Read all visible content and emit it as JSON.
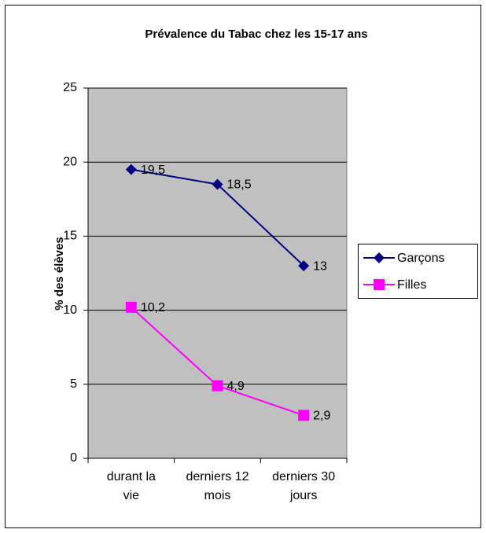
{
  "chart_data": {
    "type": "line",
    "title": "Prévalence du Tabac chez les 15-17 ans",
    "ylabel": "% des élèves",
    "categories": [
      "durant la vie",
      "derniers 12 mois",
      "derniers 30 jours"
    ],
    "series": [
      {
        "name": "Garçons",
        "color": "#000080",
        "marker": "diamond",
        "values": [
          19.5,
          18.5,
          13
        ],
        "value_labels": [
          "19,5",
          "18,5",
          "13"
        ]
      },
      {
        "name": "Filles",
        "color": "#ff00ff",
        "marker": "square",
        "values": [
          10.2,
          4.9,
          2.9
        ],
        "value_labels": [
          "10,2",
          "4,9",
          "2,9"
        ]
      }
    ],
    "ylim": [
      0,
      25
    ],
    "yticks": [
      0,
      5,
      10,
      15,
      20,
      25
    ],
    "grid": true,
    "legend": "right"
  }
}
